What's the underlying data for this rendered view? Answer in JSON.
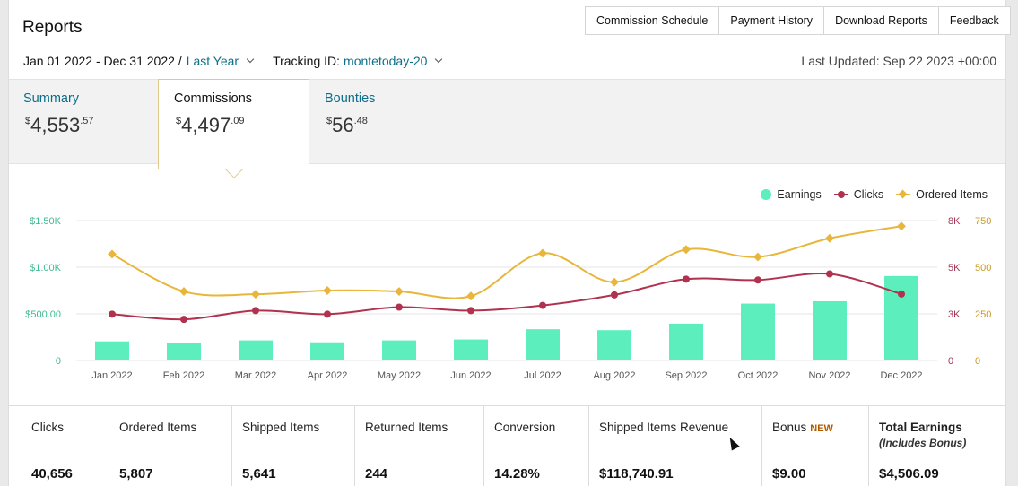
{
  "header": {
    "title": "Reports",
    "tabs": [
      "Commission Schedule",
      "Payment History",
      "Download Reports",
      "Feedback"
    ]
  },
  "filters": {
    "date_range": "Jan 01 2022 - Dec 31 2022 /",
    "period": "Last Year",
    "tracking_label": "Tracking ID:",
    "tracking_id": "montetoday-20",
    "last_updated": "Last Updated: Sep 22 2023 +00:00"
  },
  "summary_tabs": [
    {
      "label": "Summary",
      "value_main": "4,553",
      "value_cents": ".57",
      "currency": "$"
    },
    {
      "label": "Commissions",
      "value_main": "4,497",
      "value_cents": ".09",
      "currency": "$"
    },
    {
      "label": "Bounties",
      "value_main": "56",
      "value_cents": ".48",
      "currency": "$"
    }
  ],
  "legend": {
    "earnings": "Earnings",
    "clicks": "Clicks",
    "ordered": "Ordered Items"
  },
  "colors": {
    "earnings": "#5ceebc",
    "clicks": "#b0324f",
    "ordered": "#e8b63a",
    "link": "#0b6e8a"
  },
  "chart_data": {
    "type": "bar",
    "categories": [
      "Jan 2022",
      "Feb 2022",
      "Mar 2022",
      "Apr 2022",
      "May 2022",
      "Jun 2022",
      "Jul 2022",
      "Aug 2022",
      "Sep 2022",
      "Oct 2022",
      "Nov 2022",
      "Dec 2022"
    ],
    "series": [
      {
        "name": "Earnings",
        "type": "bar",
        "axis": "left",
        "values": [
          205,
          185,
          215,
          195,
          215,
          225,
          335,
          325,
          395,
          610,
          635,
          905
        ]
      },
      {
        "name": "Clicks",
        "type": "line",
        "axis": "right-1",
        "values": [
          2650,
          2350,
          2850,
          2650,
          3050,
          2850,
          3150,
          3750,
          4650,
          4600,
          4950,
          3800
        ]
      },
      {
        "name": "Ordered Items",
        "type": "line",
        "axis": "right-2",
        "values": [
          570,
          370,
          355,
          375,
          370,
          345,
          575,
          420,
          595,
          555,
          655,
          720
        ]
      }
    ],
    "left_ticks": [
      "0",
      "$500.00",
      "$1.00K",
      "$1.50K"
    ],
    "right1_ticks": [
      "0",
      "3K",
      "5K",
      "8K"
    ],
    "right2_ticks": [
      "0",
      "250",
      "500",
      "750"
    ],
    "ylim_left": [
      0,
      1500
    ],
    "ylim_right1": [
      0,
      8000
    ],
    "ylim_right2": [
      0,
      750
    ],
    "legend_position": "top-right",
    "grid": true
  },
  "metrics": [
    {
      "label": "Clicks",
      "value": "40,656"
    },
    {
      "label": "Ordered Items",
      "value": "5,807"
    },
    {
      "label": "Shipped Items",
      "value": "5,641"
    },
    {
      "label": "Returned Items",
      "value": "244"
    },
    {
      "label": "Conversion",
      "value": "14.28%"
    },
    {
      "label": "Shipped Items Revenue",
      "value": "$118,740.91"
    },
    {
      "label": "Bonus",
      "badge": "NEW",
      "value": "$9.00"
    },
    {
      "label": "Total Earnings",
      "sublabel": "(Includes Bonus)",
      "value": "$4,506.09"
    }
  ]
}
